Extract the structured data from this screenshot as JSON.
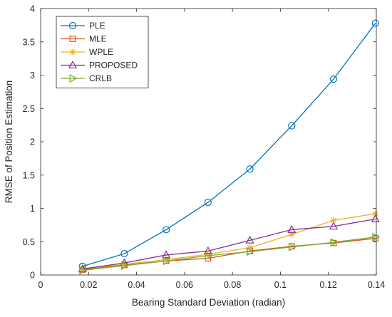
{
  "chart_data": {
    "type": "line",
    "xlabel": "Bearing Standard Deviation (radian)",
    "ylabel": "RMSE of Position Estimation",
    "xlim": [
      0,
      0.14
    ],
    "ylim": [
      0,
      4
    ],
    "xticks": [
      "0",
      "0.02",
      "0.04",
      "0.06",
      "0.08",
      "0.1",
      "0.12",
      "0.14"
    ],
    "yticks": [
      "0",
      "0.5",
      "1",
      "1.5",
      "2",
      "2.5",
      "3",
      "3.5",
      "4"
    ],
    "grid": false,
    "legend_position": "top-left",
    "x": [
      0.01745,
      0.0349,
      0.05236,
      0.06981,
      0.08727,
      0.10472,
      0.12217,
      0.13963
    ],
    "series": [
      {
        "name": "PLE",
        "color": "#0072BD",
        "marker": "circle",
        "values": [
          0.13,
          0.32,
          0.68,
          1.09,
          1.59,
          2.24,
          2.94,
          3.78
        ]
      },
      {
        "name": "MLE",
        "color": "#D95319",
        "marker": "square",
        "values": [
          0.08,
          0.15,
          0.21,
          0.25,
          0.36,
          0.43,
          0.48,
          0.55
        ]
      },
      {
        "name": "WPLE",
        "color": "#EDB120",
        "marker": "star",
        "values": [
          0.09,
          0.16,
          0.23,
          0.31,
          0.41,
          0.61,
          0.82,
          0.92
        ]
      },
      {
        "name": "PROPOSED",
        "color": "#7E2F8E",
        "marker": "triangle-up",
        "values": [
          0.09,
          0.18,
          0.3,
          0.36,
          0.52,
          0.68,
          0.73,
          0.84
        ]
      },
      {
        "name": "CRLB",
        "color": "#77AC30",
        "marker": "triangle-right",
        "values": [
          0.07,
          0.14,
          0.21,
          0.29,
          0.35,
          0.42,
          0.49,
          0.57
        ]
      }
    ]
  }
}
